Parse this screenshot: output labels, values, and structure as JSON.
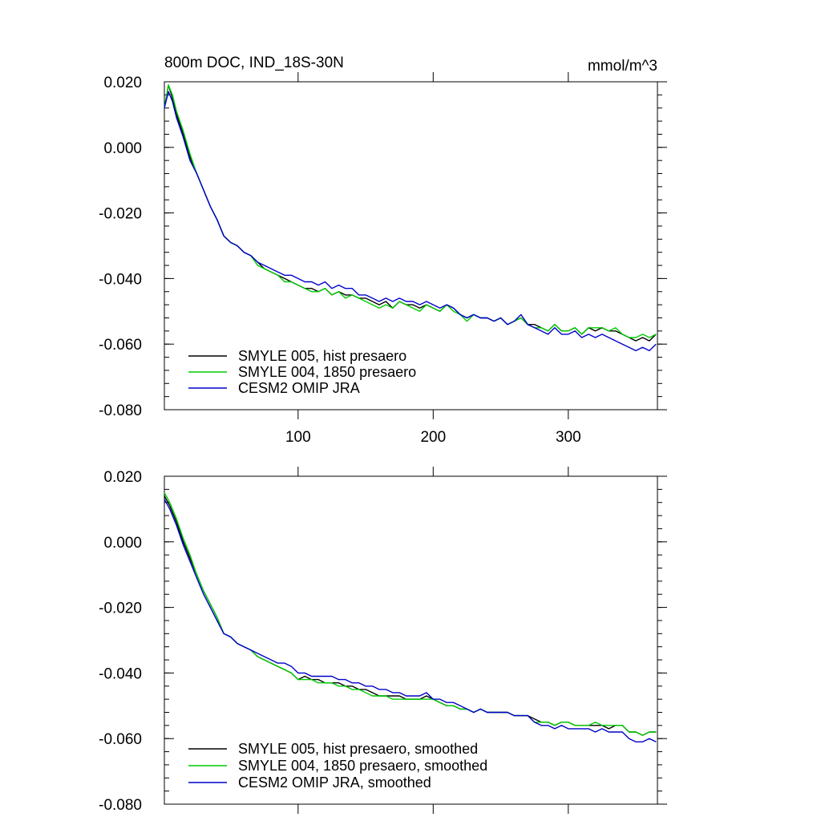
{
  "chart_data": [
    {
      "type": "line",
      "title": "800m DOC, IND_18S-30N",
      "units": "mmol/m^3",
      "xlabel": "",
      "ylabel": "",
      "xlim": [
        1,
        366
      ],
      "ylim": [
        -0.08,
        0.02
      ],
      "xticks": [
        100,
        200,
        300
      ],
      "xtick_labels": [
        "100",
        "200",
        "300"
      ],
      "yticks": [
        0.02,
        0.0,
        -0.02,
        -0.04,
        -0.06,
        -0.08
      ],
      "ytick_labels": [
        "0.020",
        "0.000",
        "-0.020",
        "-0.040",
        "-0.060",
        "-0.080"
      ],
      "legend_position": "bottom-left",
      "x": [
        1,
        4,
        7,
        10,
        15,
        20,
        25,
        30,
        35,
        40,
        45,
        50,
        55,
        60,
        65,
        70,
        75,
        80,
        85,
        90,
        95,
        100,
        105,
        110,
        115,
        120,
        125,
        130,
        135,
        140,
        145,
        150,
        155,
        160,
        165,
        170,
        175,
        180,
        185,
        190,
        195,
        200,
        205,
        210,
        215,
        220,
        225,
        230,
        235,
        240,
        245,
        250,
        255,
        260,
        265,
        270,
        275,
        280,
        285,
        290,
        295,
        300,
        305,
        310,
        315,
        320,
        325,
        330,
        335,
        340,
        345,
        350,
        355,
        360,
        365
      ],
      "series": [
        {
          "name": "SMYLE 005, hist presaero",
          "color": "#000000",
          "values": [
            0.012,
            0.019,
            0.015,
            0.01,
            0.004,
            -0.003,
            -0.008,
            -0.013,
            -0.018,
            -0.022,
            -0.027,
            -0.029,
            -0.03,
            -0.032,
            -0.033,
            -0.035,
            -0.037,
            -0.038,
            -0.039,
            -0.04,
            -0.041,
            -0.042,
            -0.043,
            -0.043,
            -0.044,
            -0.043,
            -0.045,
            -0.044,
            -0.045,
            -0.045,
            -0.046,
            -0.046,
            -0.047,
            -0.048,
            -0.047,
            -0.049,
            -0.047,
            -0.048,
            -0.048,
            -0.049,
            -0.048,
            -0.049,
            -0.05,
            -0.048,
            -0.049,
            -0.051,
            -0.052,
            -0.051,
            -0.052,
            -0.052,
            -0.053,
            -0.052,
            -0.054,
            -0.053,
            -0.052,
            -0.054,
            -0.054,
            -0.055,
            -0.056,
            -0.054,
            -0.056,
            -0.056,
            -0.055,
            -0.057,
            -0.055,
            -0.056,
            -0.055,
            -0.056,
            -0.056,
            -0.057,
            -0.058,
            -0.059,
            -0.058,
            -0.059,
            -0.057
          ]
        },
        {
          "name": "SMYLE 004, 1850 presaero",
          "color": "#00cc00",
          "values": [
            0.012,
            0.019,
            0.016,
            0.011,
            0.005,
            -0.002,
            -0.008,
            -0.013,
            -0.018,
            -0.022,
            -0.027,
            -0.029,
            -0.03,
            -0.032,
            -0.033,
            -0.036,
            -0.037,
            -0.038,
            -0.039,
            -0.041,
            -0.041,
            -0.042,
            -0.043,
            -0.044,
            -0.044,
            -0.043,
            -0.045,
            -0.044,
            -0.046,
            -0.045,
            -0.046,
            -0.047,
            -0.048,
            -0.049,
            -0.048,
            -0.049,
            -0.047,
            -0.048,
            -0.049,
            -0.05,
            -0.048,
            -0.049,
            -0.05,
            -0.048,
            -0.05,
            -0.051,
            -0.053,
            -0.051,
            -0.052,
            -0.052,
            -0.053,
            -0.052,
            -0.054,
            -0.053,
            -0.052,
            -0.054,
            -0.055,
            -0.055,
            -0.056,
            -0.054,
            -0.056,
            -0.056,
            -0.055,
            -0.057,
            -0.055,
            -0.055,
            -0.055,
            -0.056,
            -0.055,
            -0.057,
            -0.058,
            -0.058,
            -0.057,
            -0.058,
            -0.057
          ]
        },
        {
          "name": "CESM2 OMIP JRA",
          "color": "#0000cc",
          "values": [
            0.012,
            0.017,
            0.014,
            0.009,
            0.003,
            -0.004,
            -0.008,
            -0.013,
            -0.018,
            -0.022,
            -0.027,
            -0.029,
            -0.03,
            -0.032,
            -0.033,
            -0.035,
            -0.036,
            -0.037,
            -0.038,
            -0.039,
            -0.039,
            -0.04,
            -0.041,
            -0.041,
            -0.042,
            -0.041,
            -0.043,
            -0.042,
            -0.043,
            -0.043,
            -0.045,
            -0.045,
            -0.046,
            -0.047,
            -0.046,
            -0.047,
            -0.046,
            -0.047,
            -0.047,
            -0.048,
            -0.047,
            -0.048,
            -0.049,
            -0.048,
            -0.049,
            -0.051,
            -0.052,
            -0.051,
            -0.052,
            -0.052,
            -0.053,
            -0.052,
            -0.054,
            -0.053,
            -0.051,
            -0.054,
            -0.055,
            -0.056,
            -0.057,
            -0.055,
            -0.057,
            -0.057,
            -0.056,
            -0.058,
            -0.057,
            -0.058,
            -0.057,
            -0.058,
            -0.059,
            -0.06,
            -0.061,
            -0.062,
            -0.061,
            -0.062,
            -0.06
          ]
        }
      ]
    },
    {
      "type": "line",
      "title": "",
      "xlabel": "",
      "ylabel": "",
      "xlim": [
        1,
        366
      ],
      "ylim": [
        -0.08,
        0.02
      ],
      "xticks": [
        100,
        200,
        300
      ],
      "xtick_labels": [
        "",
        "",
        ""
      ],
      "yticks": [
        0.02,
        0.0,
        -0.02,
        -0.04,
        -0.06,
        -0.08
      ],
      "ytick_labels": [
        "0.020",
        "0.000",
        "-0.020",
        "-0.040",
        "-0.060",
        "-0.080"
      ],
      "legend_position": "bottom-left",
      "x": [
        1,
        5,
        10,
        15,
        20,
        25,
        30,
        35,
        40,
        45,
        50,
        55,
        60,
        65,
        70,
        75,
        80,
        85,
        90,
        95,
        100,
        105,
        110,
        115,
        120,
        125,
        130,
        135,
        140,
        145,
        150,
        155,
        160,
        165,
        170,
        175,
        180,
        185,
        190,
        195,
        200,
        205,
        210,
        215,
        220,
        225,
        230,
        235,
        240,
        245,
        250,
        255,
        260,
        265,
        270,
        275,
        280,
        285,
        290,
        295,
        300,
        305,
        310,
        315,
        320,
        325,
        330,
        335,
        340,
        345,
        350,
        355,
        360,
        365
      ],
      "series": [
        {
          "name": "SMYLE 005, hist presaero, smoothed",
          "color": "#000000",
          "values": [
            0.014,
            0.011,
            0.006,
            0.0,
            -0.005,
            -0.01,
            -0.015,
            -0.019,
            -0.023,
            -0.028,
            -0.029,
            -0.031,
            -0.032,
            -0.033,
            -0.035,
            -0.036,
            -0.037,
            -0.038,
            -0.039,
            -0.04,
            -0.042,
            -0.041,
            -0.042,
            -0.042,
            -0.043,
            -0.043,
            -0.043,
            -0.044,
            -0.044,
            -0.045,
            -0.045,
            -0.046,
            -0.047,
            -0.047,
            -0.047,
            -0.047,
            -0.048,
            -0.048,
            -0.048,
            -0.047,
            -0.048,
            -0.049,
            -0.05,
            -0.05,
            -0.051,
            -0.051,
            -0.052,
            -0.051,
            -0.052,
            -0.052,
            -0.052,
            -0.052,
            -0.053,
            -0.053,
            -0.053,
            -0.054,
            -0.055,
            -0.055,
            -0.056,
            -0.055,
            -0.055,
            -0.056,
            -0.056,
            -0.056,
            -0.056,
            -0.056,
            -0.057,
            -0.056,
            -0.056,
            -0.058,
            -0.058,
            -0.059,
            -0.058,
            -0.058
          ]
        },
        {
          "name": "SMYLE 004, 1850 presaero, smoothed",
          "color": "#00cc00",
          "values": [
            0.015,
            0.012,
            0.007,
            0.001,
            -0.004,
            -0.01,
            -0.015,
            -0.019,
            -0.023,
            -0.028,
            -0.029,
            -0.031,
            -0.032,
            -0.033,
            -0.035,
            -0.036,
            -0.037,
            -0.038,
            -0.039,
            -0.04,
            -0.042,
            -0.042,
            -0.042,
            -0.043,
            -0.043,
            -0.043,
            -0.044,
            -0.044,
            -0.045,
            -0.045,
            -0.046,
            -0.047,
            -0.047,
            -0.047,
            -0.048,
            -0.048,
            -0.048,
            -0.048,
            -0.048,
            -0.048,
            -0.048,
            -0.049,
            -0.05,
            -0.05,
            -0.051,
            -0.051,
            -0.052,
            -0.051,
            -0.052,
            -0.052,
            -0.052,
            -0.052,
            -0.053,
            -0.053,
            -0.053,
            -0.055,
            -0.055,
            -0.055,
            -0.056,
            -0.055,
            -0.055,
            -0.056,
            -0.056,
            -0.056,
            -0.055,
            -0.056,
            -0.056,
            -0.056,
            -0.056,
            -0.058,
            -0.058,
            -0.059,
            -0.058,
            -0.058
          ]
        },
        {
          "name": "CESM2 OMIP JRA, smoothed",
          "color": "#0000cc",
          "values": [
            0.013,
            0.01,
            0.005,
            -0.001,
            -0.006,
            -0.011,
            -0.016,
            -0.02,
            -0.024,
            -0.028,
            -0.029,
            -0.031,
            -0.032,
            -0.033,
            -0.034,
            -0.035,
            -0.036,
            -0.037,
            -0.037,
            -0.038,
            -0.04,
            -0.04,
            -0.041,
            -0.041,
            -0.041,
            -0.041,
            -0.042,
            -0.042,
            -0.043,
            -0.043,
            -0.044,
            -0.044,
            -0.045,
            -0.045,
            -0.046,
            -0.046,
            -0.047,
            -0.047,
            -0.047,
            -0.046,
            -0.048,
            -0.048,
            -0.049,
            -0.049,
            -0.05,
            -0.051,
            -0.052,
            -0.051,
            -0.052,
            -0.052,
            -0.052,
            -0.052,
            -0.053,
            -0.053,
            -0.053,
            -0.055,
            -0.056,
            -0.056,
            -0.057,
            -0.056,
            -0.057,
            -0.057,
            -0.057,
            -0.057,
            -0.058,
            -0.057,
            -0.058,
            -0.058,
            -0.058,
            -0.06,
            -0.061,
            -0.061,
            -0.06,
            -0.061
          ]
        }
      ]
    }
  ]
}
